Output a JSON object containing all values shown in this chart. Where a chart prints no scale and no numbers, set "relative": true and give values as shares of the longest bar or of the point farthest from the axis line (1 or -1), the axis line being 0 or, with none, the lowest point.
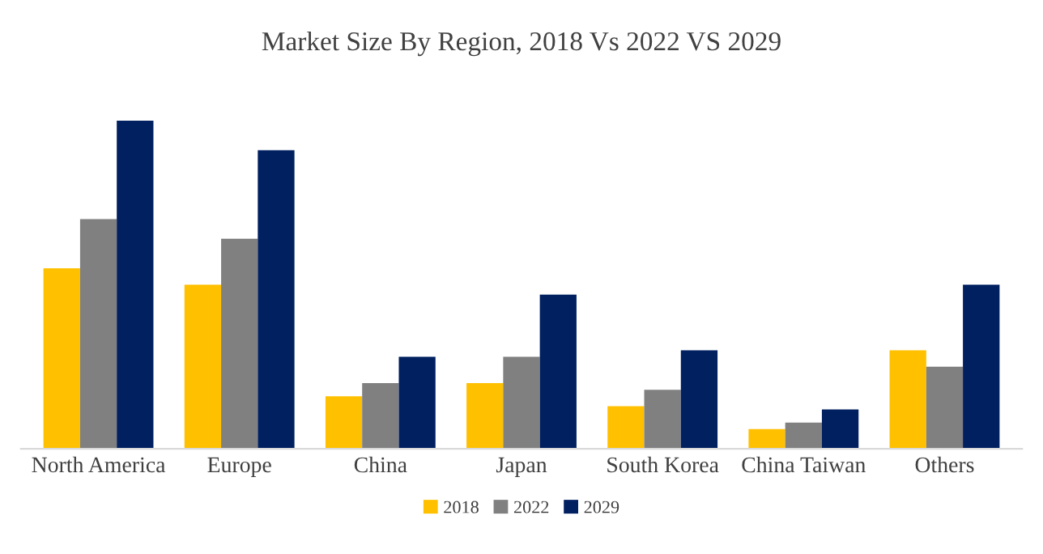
{
  "chart_data": {
    "type": "bar",
    "title": "Market Size By Region, 2018 Vs 2022 VS 2029",
    "relative": true,
    "categories": [
      "North America",
      "Europe",
      "China",
      "Japan",
      "South Korea",
      "China Taiwan",
      "Others"
    ],
    "series": [
      {
        "name": "2018",
        "color": "#ffc000",
        "values": [
          0.55,
          0.5,
          0.16,
          0.2,
          0.13,
          0.06,
          0.3
        ]
      },
      {
        "name": "2022",
        "color": "#808080",
        "values": [
          0.7,
          0.64,
          0.2,
          0.28,
          0.18,
          0.08,
          0.25
        ]
      },
      {
        "name": "2029",
        "color": "#002060",
        "values": [
          1,
          0.91,
          0.28,
          0.47,
          0.3,
          0.12,
          0.5
        ]
      }
    ],
    "legend": "bottom",
    "grid": false
  }
}
